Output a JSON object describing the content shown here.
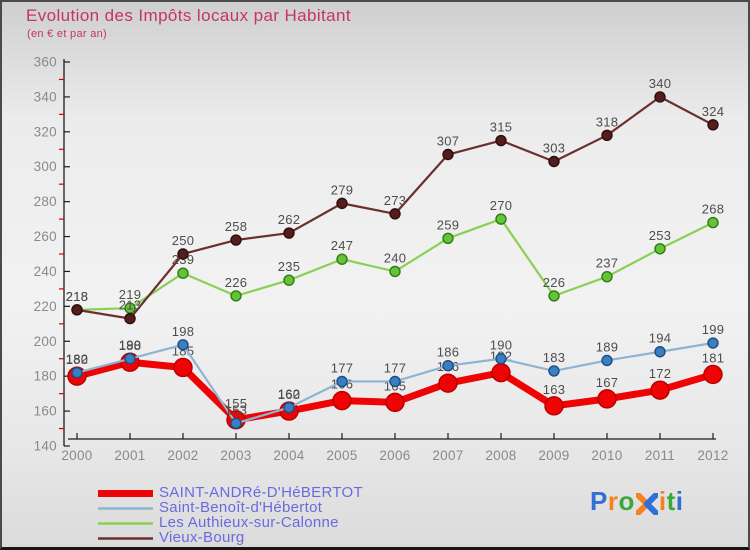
{
  "header": {
    "title": "Evolution des Impôts locaux par Habitant",
    "subtitle": "(en € et par an)"
  },
  "chart_data": {
    "type": "line",
    "x": [
      2000,
      2001,
      2002,
      2003,
      2004,
      2005,
      2006,
      2007,
      2008,
      2009,
      2010,
      2011,
      2012
    ],
    "series": [
      {
        "name": "SAINT-ANDRé-D'HéBERTOT",
        "values": [
          180,
          188,
          185,
          155,
          160,
          166,
          165,
          176,
          182,
          163,
          167,
          172,
          181
        ],
        "line_color": "#ee0404",
        "line_width": 7,
        "dot_color": "#ee0404",
        "dot_stroke": "#b80000",
        "dot_radius": 9
      },
      {
        "name": "Saint-Benoît-d'Hébertot",
        "values": [
          182,
          190,
          198,
          153,
          162,
          177,
          177,
          186,
          190,
          183,
          189,
          194,
          199
        ],
        "line_color": "#8fb3d2",
        "line_width": 2.2,
        "dot_color": "#3a7fc2",
        "dot_stroke": "#1c4e80",
        "dot_radius": 5
      },
      {
        "name": "Les Authieux-sur-Calonne",
        "values": [
          218,
          219,
          239,
          226,
          235,
          247,
          240,
          259,
          270,
          226,
          237,
          253,
          268
        ],
        "line_color": "#8ad054",
        "line_width": 2.2,
        "dot_color": "#64c337",
        "dot_stroke": "#2f7a12",
        "dot_radius": 5
      },
      {
        "name": "Vieux-Bourg",
        "values": [
          218,
          213,
          250,
          258,
          262,
          279,
          273,
          307,
          315,
          303,
          318,
          340,
          324
        ],
        "line_color": "#6b2f2f",
        "line_width": 2.2,
        "dot_color": "#541e1e",
        "dot_stroke": "#2e0d0d",
        "dot_radius": 5
      }
    ],
    "ylim": [
      140,
      360
    ],
    "ytick_step": 20,
    "yminor_step": 20,
    "grid": false,
    "legend_position": "bottom-left",
    "title": "Evolution des Impôts locaux par Habitant",
    "subtitle": "(en € et par an)",
    "colors": {
      "axis_line": "#1c1c1c",
      "minor_tick": "#d40000",
      "axis_label": "#8a8a8a",
      "value_label": "#4d4d4d"
    }
  },
  "logo": {
    "text": "Proxiti",
    "letters": [
      {
        "ch": "P",
        "color": "#2f6fd6"
      },
      {
        "ch": "r",
        "color": "#f5821f"
      },
      {
        "ch": "o",
        "color": "#3ba93b"
      },
      {
        "ch": "x",
        "color": "multi"
      },
      {
        "ch": "i",
        "color": "#f5821f"
      },
      {
        "ch": "t",
        "color": "#3ba93b"
      },
      {
        "ch": "i",
        "color": "#2f6fd6"
      }
    ],
    "x_colors": {
      "left": "#f5821f",
      "right": "#2f6fd6"
    }
  }
}
